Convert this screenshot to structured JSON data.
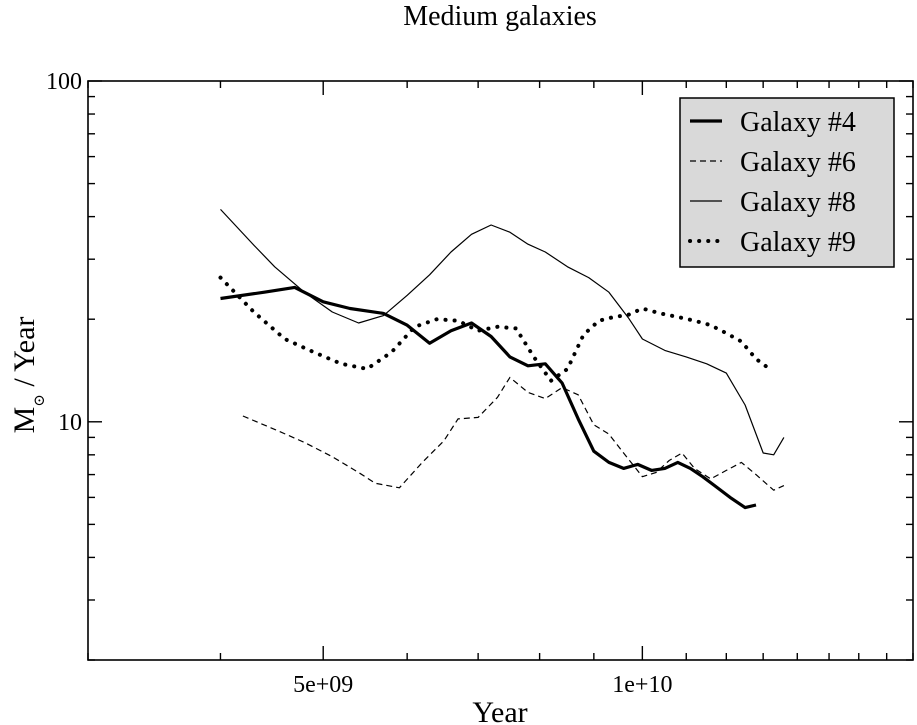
{
  "chart_data": {
    "type": "line",
    "title": "Medium galaxies",
    "xlabel": "Year",
    "ylabel_main": "M",
    "ylabel_sub": "⊙",
    "ylabel_rest": " / Year",
    "xscale": "log",
    "yscale": "log",
    "xlim": [
      3000000000,
      18000000000
    ],
    "ylim": [
      2,
      100
    ],
    "xticks": [
      {
        "value": 5000000000,
        "label": "5e+09"
      },
      {
        "value": 10000000000,
        "label": "1e+10"
      }
    ],
    "yticks": [
      {
        "value": 10,
        "label": "10"
      },
      {
        "value": 100,
        "label": "100"
      }
    ],
    "legend_placement": "top-right",
    "series": [
      {
        "name": "Galaxy #4",
        "style": "thick",
        "x": [
          4000000000,
          4400000000,
          4700000000,
          5000000000,
          5300000000,
          5700000000,
          6000000000,
          6300000000,
          6600000000,
          6900000000,
          7200000000,
          7500000000,
          7800000000,
          8100000000,
          8400000000,
          8700000000,
          9000000000,
          9300000000,
          9600000000,
          9900000000,
          10200000000,
          10500000000,
          10800000000,
          11100000000,
          11400000000,
          11700000000,
          12100000000,
          12500000000,
          12800000000
        ],
        "y": [
          23,
          24,
          24.8,
          22.5,
          21.5,
          20.8,
          19.2,
          17,
          18.5,
          19.5,
          17.8,
          15.5,
          14.6,
          14.8,
          13,
          10.2,
          8.2,
          7.6,
          7.3,
          7.5,
          7.2,
          7.3,
          7.6,
          7.3,
          6.9,
          6.5,
          6,
          5.6,
          5.7
        ]
      },
      {
        "name": "Galaxy #6",
        "style": "dashed",
        "x": [
          4200000000,
          4500000000,
          4800000000,
          5100000000,
          5400000000,
          5600000000,
          5900000000,
          6200000000,
          6500000000,
          6700000000,
          7000000000,
          7300000000,
          7500000000,
          7800000000,
          8100000000,
          8400000000,
          8700000000,
          9000000000,
          9300000000,
          9600000000,
          10000000000,
          10300000000,
          10600000000,
          10900000000,
          11200000000,
          11600000000,
          12000000000,
          12400000000,
          12800000000,
          13300000000,
          13600000000
        ],
        "y": [
          10.4,
          9.5,
          8.7,
          7.9,
          7.1,
          6.6,
          6.4,
          7.6,
          8.8,
          10.2,
          10.3,
          11.8,
          13.5,
          12.2,
          11.7,
          12.6,
          12,
          9.8,
          9.2,
          8.1,
          6.9,
          7.1,
          7.7,
          8.1,
          7.3,
          6.8,
          7.2,
          7.6,
          7,
          6.3,
          6.5
        ]
      },
      {
        "name": "Galaxy #8",
        "style": "thin",
        "x": [
          4000000000,
          4300000000,
          4500000000,
          4800000000,
          5100000000,
          5400000000,
          5700000000,
          6000000000,
          6300000000,
          6600000000,
          6900000000,
          7200000000,
          7500000000,
          7800000000,
          8100000000,
          8500000000,
          8900000000,
          9300000000,
          9700000000,
          10000000000,
          10500000000,
          11000000000,
          11500000000,
          12000000000,
          12500000000,
          13000000000,
          13300000000,
          13600000000
        ],
        "y": [
          42,
          33,
          28.5,
          24,
          21,
          19.5,
          20.5,
          23.5,
          27,
          31.5,
          35.5,
          37.8,
          36,
          33.2,
          31.5,
          28.5,
          26.5,
          24,
          20.2,
          17.5,
          16.2,
          15.5,
          14.8,
          13.9,
          11.2,
          8.1,
          8,
          9
        ]
      },
      {
        "name": "Galaxy #9",
        "style": "dotted",
        "x": [
          4000000000,
          4300000000,
          4600000000,
          4900000000,
          5200000000,
          5500000000,
          5800000000,
          6100000000,
          6400000000,
          6700000000,
          7000000000,
          7300000000,
          7600000000,
          7900000000,
          8200000000,
          8500000000,
          8800000000,
          9100000000,
          9400000000,
          9700000000,
          10000000000,
          10400000000,
          10800000000,
          11200000000,
          11600000000,
          12000000000,
          12400000000,
          12800000000,
          13100000000
        ],
        "y": [
          26.5,
          21,
          17.5,
          16,
          14.8,
          14.3,
          16,
          19,
          20,
          19.8,
          18.5,
          19,
          18.8,
          15.5,
          13.2,
          14.3,
          18,
          19.8,
          20.3,
          20.6,
          21.5,
          20.8,
          20.3,
          19.8,
          19.2,
          18.2,
          17.2,
          15.3,
          14.5
        ]
      }
    ]
  }
}
